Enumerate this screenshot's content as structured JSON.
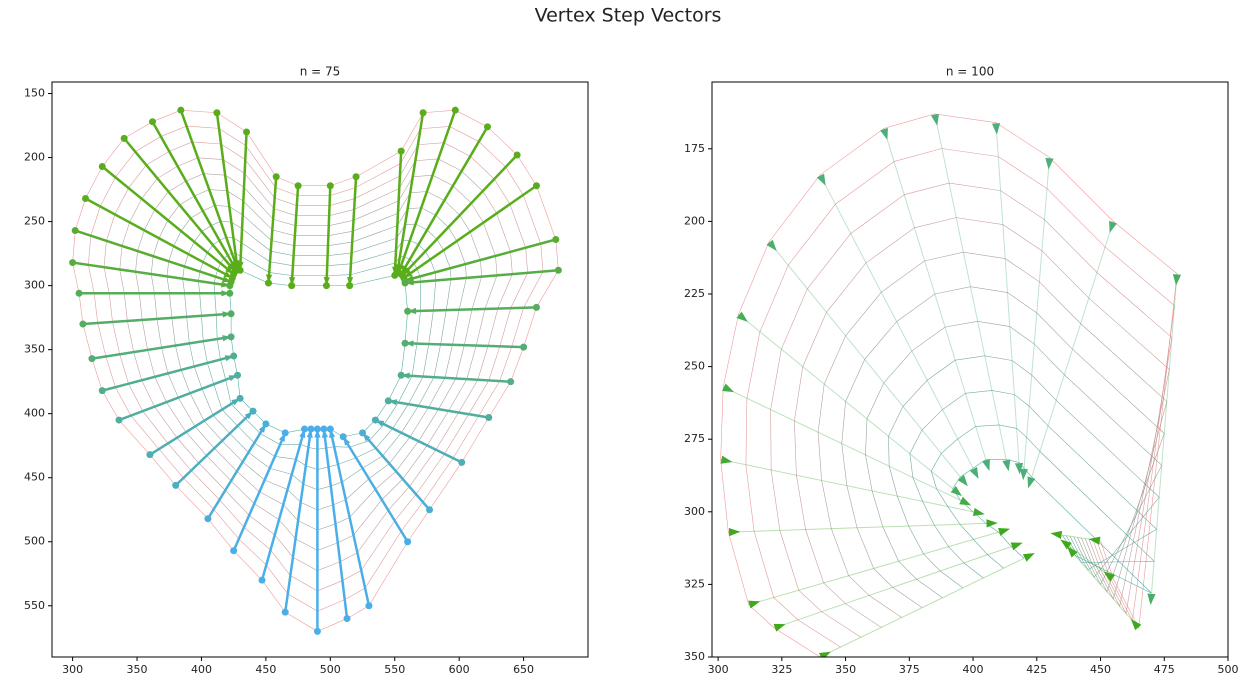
{
  "title": "Vertex Step Vectors",
  "chart_data": [
    {
      "type": "vector",
      "title": "n = 75",
      "marker": "dot",
      "invert_y": true,
      "xlim": [
        284,
        700
      ],
      "ylim": [
        141,
        590
      ],
      "xticks": [
        300,
        350,
        400,
        450,
        500,
        550,
        600,
        650
      ],
      "yticks": [
        150,
        200,
        250,
        300,
        350,
        400,
        450,
        500,
        550
      ],
      "colors": [
        "#5aad1a",
        "#4aaee8"
      ],
      "rays": [
        {
          "x": [
            300,
            422
          ],
          "y": [
            282,
            300
          ]
        },
        {
          "x": [
            302,
            423
          ],
          "y": [
            257,
            297
          ]
        },
        {
          "x": [
            310,
            424
          ],
          "y": [
            232,
            294
          ]
        },
        {
          "x": [
            323,
            425
          ],
          "y": [
            207,
            291
          ]
        },
        {
          "x": [
            340,
            426
          ],
          "y": [
            185,
            289
          ]
        },
        {
          "x": [
            362,
            427
          ],
          "y": [
            172,
            288
          ]
        },
        {
          "x": [
            384,
            428
          ],
          "y": [
            163,
            287
          ]
        },
        {
          "x": [
            412,
            428
          ],
          "y": [
            165,
            287
          ]
        },
        {
          "x": [
            435,
            430
          ],
          "y": [
            180,
            288
          ]
        },
        {
          "x": [
            458,
            452
          ],
          "y": [
            215,
            298
          ]
        },
        {
          "x": [
            475,
            470
          ],
          "y": [
            222,
            300
          ]
        },
        {
          "x": [
            500,
            497
          ],
          "y": [
            222,
            300
          ]
        },
        {
          "x": [
            520,
            515
          ],
          "y": [
            215,
            300
          ]
        },
        {
          "x": [
            555,
            550
          ],
          "y": [
            195,
            292
          ]
        },
        {
          "x": [
            572,
            552
          ],
          "y": [
            165,
            290
          ]
        },
        {
          "x": [
            597,
            553
          ],
          "y": [
            163,
            290
          ]
        },
        {
          "x": [
            622,
            555
          ],
          "y": [
            176,
            291
          ]
        },
        {
          "x": [
            645,
            556
          ],
          "y": [
            198,
            292
          ]
        },
        {
          "x": [
            660,
            557
          ],
          "y": [
            222,
            294
          ]
        },
        {
          "x": [
            675,
            558
          ],
          "y": [
            264,
            296
          ]
        },
        {
          "x": [
            677,
            558
          ],
          "y": [
            288,
            298
          ]
        },
        {
          "x": [
            660,
            560
          ],
          "y": [
            317,
            320
          ]
        },
        {
          "x": [
            650,
            558
          ],
          "y": [
            348,
            345
          ]
        },
        {
          "x": [
            640,
            555
          ],
          "y": [
            375,
            370
          ]
        },
        {
          "x": [
            623,
            545
          ],
          "y": [
            403,
            390
          ]
        },
        {
          "x": [
            602,
            535
          ],
          "y": [
            438,
            405
          ]
        },
        {
          "x": [
            577,
            525
          ],
          "y": [
            475,
            415
          ]
        },
        {
          "x": [
            560,
            510
          ],
          "y": [
            500,
            418
          ]
        },
        {
          "x": [
            530,
            500
          ],
          "y": [
            550,
            412
          ]
        },
        {
          "x": [
            513,
            495
          ],
          "y": [
            560,
            412
          ]
        },
        {
          "x": [
            490,
            490
          ],
          "y": [
            570,
            412
          ]
        },
        {
          "x": [
            465,
            485
          ],
          "y": [
            555,
            412
          ]
        },
        {
          "x": [
            447,
            480
          ],
          "y": [
            530,
            412
          ]
        },
        {
          "x": [
            425,
            465
          ],
          "y": [
            507,
            415
          ]
        },
        {
          "x": [
            405,
            450
          ],
          "y": [
            482,
            408
          ]
        },
        {
          "x": [
            380,
            440
          ],
          "y": [
            456,
            398
          ]
        },
        {
          "x": [
            360,
            430
          ],
          "y": [
            432,
            388
          ]
        },
        {
          "x": [
            336,
            428
          ],
          "y": [
            405,
            370
          ]
        },
        {
          "x": [
            323,
            425
          ],
          "y": [
            382,
            355
          ]
        },
        {
          "x": [
            315,
            423
          ],
          "y": [
            357,
            340
          ]
        },
        {
          "x": [
            308,
            423
          ],
          "y": [
            330,
            322
          ]
        },
        {
          "x": [
            305,
            422
          ],
          "y": [
            306,
            306
          ]
        }
      ]
    },
    {
      "type": "vector",
      "title": "n = 100",
      "marker": "arrow",
      "invert_y": true,
      "xlim": [
        297.6,
        500
      ],
      "ylim": [
        152,
        350
      ],
      "xticks": [
        300,
        325,
        350,
        375,
        400,
        425,
        450,
        475,
        500
      ],
      "yticks": [
        175,
        200,
        225,
        250,
        275,
        300,
        325,
        350
      ],
      "colors": [
        "#4caf7a",
        "#3fa81c"
      ],
      "rays": [
        {
          "x": [
            340,
            420
          ],
          "y": [
            350,
            316
          ]
        },
        {
          "x": [
            322,
            415
          ],
          "y": [
            340,
            312
          ]
        },
        {
          "x": [
            312,
            410
          ],
          "y": [
            332,
            307
          ]
        },
        {
          "x": [
            304,
            405
          ],
          "y": [
            307,
            304
          ]
        },
        {
          "x": [
            301,
            400
          ],
          "y": [
            282,
            300
          ]
        },
        {
          "x": [
            302,
            395
          ],
          "y": [
            257,
            296
          ]
        },
        {
          "x": [
            308,
            392
          ],
          "y": [
            232,
            292
          ]
        },
        {
          "x": [
            320,
            395
          ],
          "y": [
            207,
            288
          ]
        },
        {
          "x": [
            340,
            400
          ],
          "y": [
            184,
            285
          ]
        },
        {
          "x": [
            365,
            405
          ],
          "y": [
            168,
            282
          ]
        },
        {
          "x": [
            385,
            413
          ],
          "y": [
            163,
            282
          ]
        },
        {
          "x": [
            409,
            418
          ],
          "y": [
            166,
            283
          ]
        },
        {
          "x": [
            430,
            420
          ],
          "y": [
            178,
            285
          ]
        },
        {
          "x": [
            455,
            423
          ],
          "y": [
            200,
            288
          ]
        },
        {
          "x": [
            480,
            470
          ],
          "y": [
            218,
            328
          ]
        },
        {
          "x": [
            465,
            440
          ],
          "y": [
            340,
            315
          ]
        },
        {
          "x": [
            455,
            438
          ],
          "y": [
            323,
            312
          ]
        },
        {
          "x": [
            450,
            435
          ],
          "y": [
            310,
            308
          ]
        }
      ]
    }
  ]
}
